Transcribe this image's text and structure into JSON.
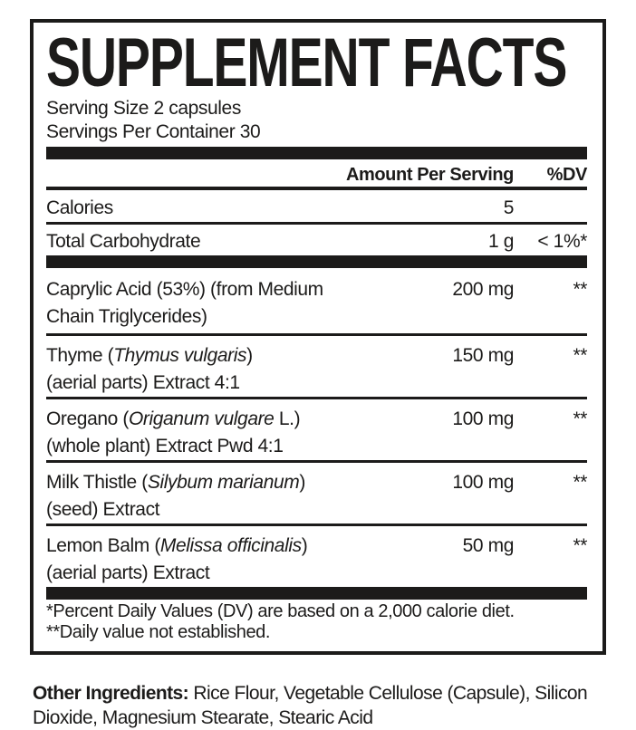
{
  "label": {
    "title": "SUPPLEMENT FACTS",
    "serving_size": "Serving Size 2 capsules",
    "servings_per_container": "Servings Per Container 30",
    "columns": {
      "amount": "Amount Per Serving",
      "dv": "%DV"
    },
    "rows": [
      {
        "pre": "Calories",
        "latin": "",
        "post": "",
        "line2": "",
        "amount": "5",
        "dv": ""
      },
      {
        "pre": "Total Carbohydrate",
        "latin": "",
        "post": "",
        "line2": "",
        "amount": "1 g",
        "dv": "< 1%*"
      },
      {
        "pre": "Caprylic Acid (53%) (from Medium",
        "latin": "",
        "post": "",
        "line2": "Chain Triglycerides)",
        "amount": "200 mg",
        "dv": "**"
      },
      {
        "pre": "Thyme (",
        "latin": "Thymus vulgaris",
        "post": ")",
        "line2": "(aerial parts) Extract 4:1",
        "amount": "150 mg",
        "dv": "**"
      },
      {
        "pre": "Oregano (",
        "latin": "Origanum vulgare",
        "post": " L.)",
        "line2": "(whole plant) Extract Pwd 4:1",
        "amount": "100 mg",
        "dv": "**"
      },
      {
        "pre": "Milk Thistle (",
        "latin": "Silybum marianum",
        "post": ")",
        "line2": "(seed) Extract",
        "amount": "100 mg",
        "dv": "**"
      },
      {
        "pre": "Lemon Balm (",
        "latin": "Melissa officinalis",
        "post": ")",
        "line2": "(aerial parts) Extract",
        "amount": "50 mg",
        "dv": "**"
      }
    ],
    "footnotes": [
      "*Percent Daily Values (DV) are based on a 2,000 calorie diet.",
      "**Daily value not established."
    ],
    "other_ingredients": {
      "label": "Other Ingredients:",
      "text": "Rice Flour, Vegetable Cellulose (Capsule), Silicon Dioxide, Magnesium Stearate, Stearic Acid"
    }
  }
}
